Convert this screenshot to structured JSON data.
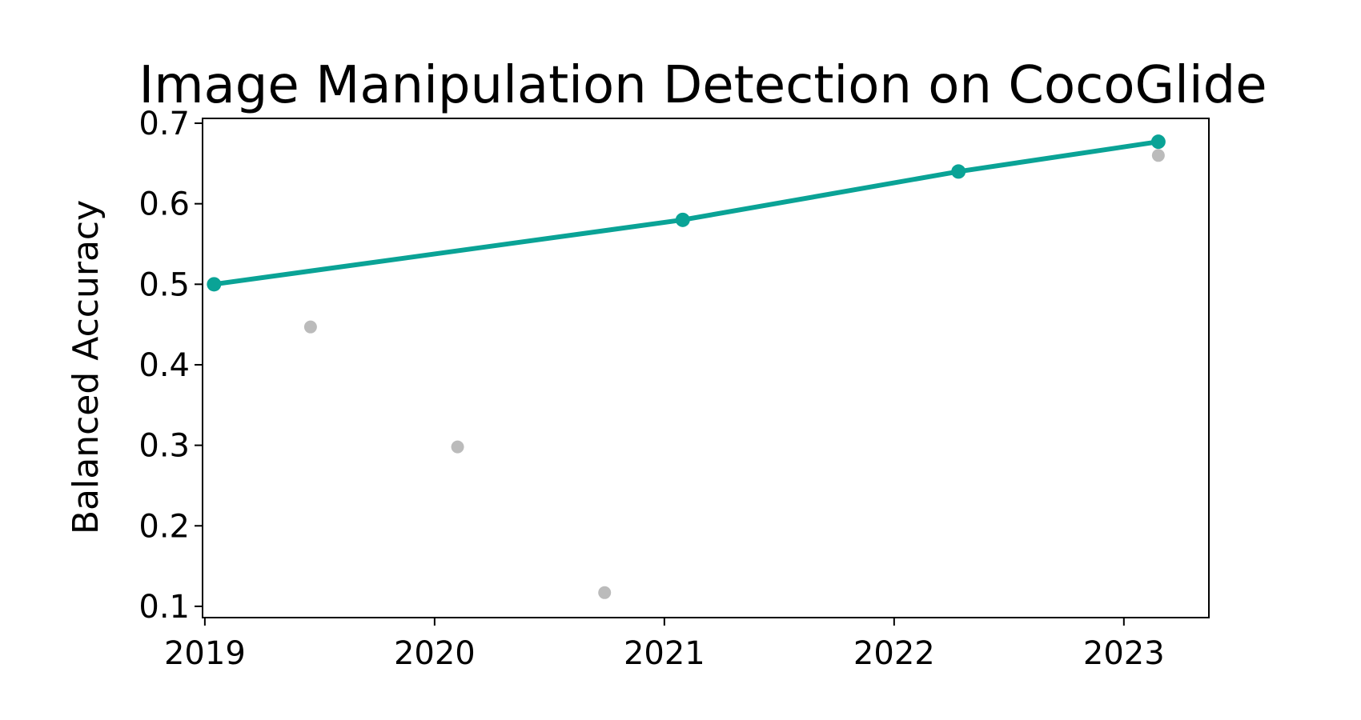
{
  "chart_data": {
    "type": "scatter",
    "title": "Image Manipulation Detection on CocoGlide",
    "xlabel": "",
    "ylabel": "Balanced Accuracy",
    "x_ticks": [
      2019,
      2020,
      2021,
      2022,
      2023
    ],
    "x_tick_labels": [
      "2019",
      "2020",
      "2021",
      "2022",
      "2023"
    ],
    "y_ticks": [
      0.1,
      0.2,
      0.3,
      0.4,
      0.5,
      0.6,
      0.7
    ],
    "y_tick_labels": [
      "0.1",
      "0.2",
      "0.3",
      "0.4",
      "0.5",
      "0.6",
      "0.7"
    ],
    "xlim": [
      2018.99,
      2023.37
    ],
    "ylim": [
      0.086,
      0.706
    ],
    "grid": false,
    "legend": "none",
    "series": [
      {
        "kind": "line",
        "color": "#0aa396",
        "points": [
          {
            "x": 2019.04,
            "y": 0.5
          },
          {
            "x": 2021.08,
            "y": 0.58
          },
          {
            "x": 2022.28,
            "y": 0.64
          },
          {
            "x": 2023.15,
            "y": 0.677
          }
        ]
      },
      {
        "kind": "scatter",
        "color": "#bbbbbb",
        "points": [
          {
            "x": 2019.46,
            "y": 0.447
          },
          {
            "x": 2020.1,
            "y": 0.298
          },
          {
            "x": 2020.74,
            "y": 0.117
          },
          {
            "x": 2023.15,
            "y": 0.66
          }
        ]
      }
    ]
  }
}
